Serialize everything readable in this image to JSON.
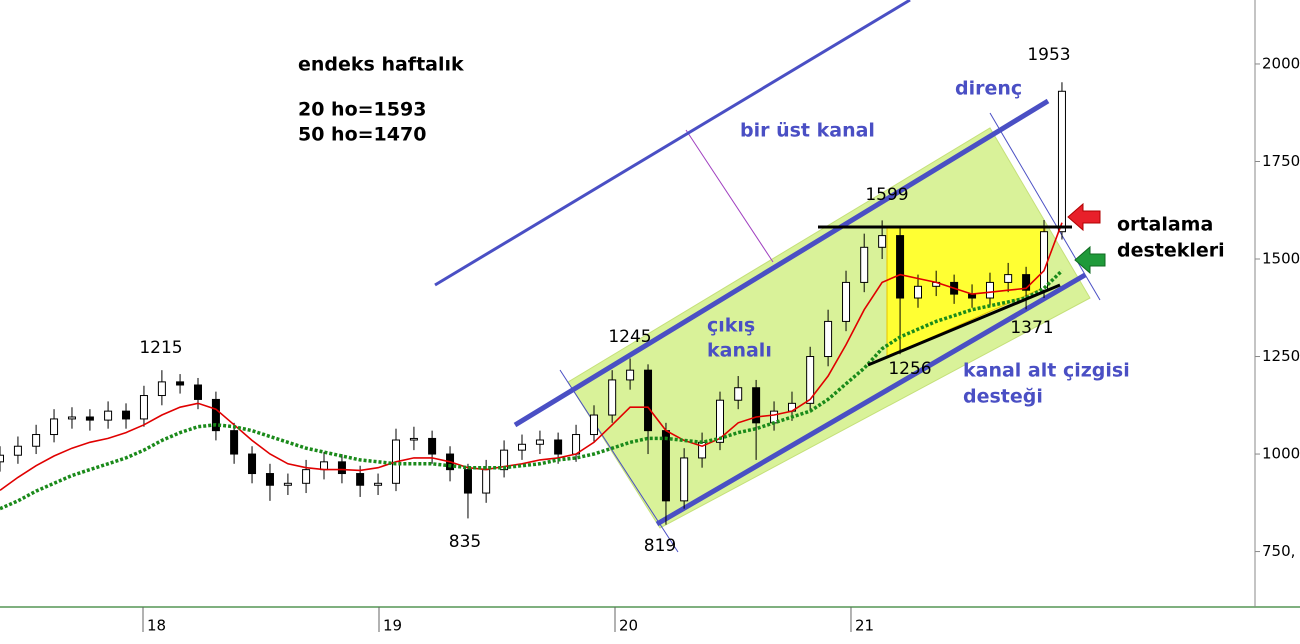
{
  "chart_data": {
    "type": "candlestick",
    "x": [
      17.394,
      17.47,
      17.547,
      17.623,
      17.699,
      17.775,
      17.852,
      17.928,
      18.004,
      18.08,
      18.157,
      18.233,
      18.309,
      18.386,
      18.462,
      18.538,
      18.614,
      18.691,
      18.767,
      18.843,
      18.92,
      18.996,
      19.072,
      19.148,
      19.225,
      19.301,
      19.377,
      19.454,
      19.53,
      19.606,
      19.682,
      19.759,
      19.835,
      19.911,
      19.988,
      20.064,
      20.14,
      20.216,
      20.293,
      20.369,
      20.445,
      20.522,
      20.598,
      20.674,
      20.75,
      20.827,
      20.903,
      20.979,
      21.056,
      21.132,
      21.208,
      21.284,
      21.361,
      21.437,
      21.513,
      21.589,
      21.666,
      21.742,
      21.818,
      21.894
    ],
    "open": [
      980,
      997,
      1020,
      1050,
      1090,
      1095,
      1087,
      1110,
      1090,
      1150,
      1185,
      1177,
      1140,
      1060,
      1000,
      950,
      920,
      925,
      960,
      980,
      950,
      920,
      925,
      1036,
      1040,
      1000,
      960,
      900,
      960,
      1010,
      1025,
      1036,
      1000,
      1050,
      1100,
      1190,
      1215,
      1060,
      880,
      990,
      1030,
      1138,
      1170,
      1080,
      1110,
      1130,
      1250,
      1340,
      1440,
      1530,
      1560,
      1400,
      1430,
      1440,
      1410,
      1400,
      1440,
      1460,
      1420,
      1570
    ],
    "high": [
      1020,
      1045,
      1075,
      1115,
      1120,
      1115,
      1135,
      1130,
      1175,
      1215,
      1205,
      1195,
      1160,
      1080,
      1020,
      975,
      950,
      985,
      1005,
      1000,
      970,
      950,
      1065,
      1070,
      1060,
      1020,
      975,
      985,
      1035,
      1050,
      1060,
      1055,
      1075,
      1125,
      1215,
      1245,
      1230,
      1080,
      1015,
      1055,
      1160,
      1200,
      1190,
      1135,
      1160,
      1275,
      1370,
      1470,
      1565,
      1599,
      1580,
      1460,
      1470,
      1460,
      1435,
      1465,
      1490,
      1480,
      1600,
      1953
    ],
    "low": [
      955,
      975,
      1000,
      1030,
      1065,
      1060,
      1065,
      1065,
      1070,
      1125,
      1155,
      1115,
      1035,
      975,
      925,
      880,
      895,
      900,
      935,
      925,
      890,
      895,
      905,
      1010,
      975,
      930,
      835,
      875,
      940,
      985,
      1000,
      975,
      980,
      1030,
      1080,
      1165,
      1000,
      819,
      860,
      965,
      1010,
      1115,
      985,
      1060,
      1085,
      1110,
      1225,
      1315,
      1415,
      1500,
      1256,
      1375,
      1405,
      1385,
      1375,
      1380,
      1415,
      1371,
      1400,
      1550
    ],
    "close": [
      997,
      1020,
      1050,
      1090,
      1095,
      1087,
      1110,
      1090,
      1150,
      1185,
      1177,
      1140,
      1060,
      1000,
      950,
      920,
      925,
      960,
      980,
      950,
      920,
      925,
      1036,
      1040,
      1000,
      960,
      900,
      960,
      1010,
      1025,
      1036,
      1000,
      1050,
      1100,
      1190,
      1215,
      1060,
      880,
      990,
      1030,
      1138,
      1170,
      1080,
      1110,
      1130,
      1250,
      1340,
      1440,
      1530,
      1560,
      1400,
      1430,
      1440,
      1410,
      1400,
      1440,
      1460,
      1420,
      1570,
      1930
    ],
    "up_color": "#ffffff",
    "down_color": "#000000",
    "moving_averages": [
      {
        "color": "#e00000",
        "style": "solid",
        "values": [
          907,
          940,
          970,
          995,
          1015,
          1030,
          1040,
          1055,
          1075,
          1100,
          1120,
          1130,
          1115,
          1075,
          1035,
          1000,
          975,
          965,
          960,
          960,
          958,
          965,
          980,
          990,
          990,
          980,
          965,
          960,
          968,
          975,
          985,
          990,
          1000,
          1030,
          1075,
          1120,
          1120,
          1060,
          1035,
          1020,
          1040,
          1080,
          1095,
          1100,
          1110,
          1140,
          1200,
          1280,
          1370,
          1440,
          1460,
          1450,
          1440,
          1425,
          1410,
          1415,
          1420,
          1425,
          1470,
          1593
        ]
      },
      {
        "color": "#1a8a1a",
        "style": "dotted",
        "values": [
          860,
          880,
          905,
          925,
          945,
          960,
          975,
          990,
          1010,
          1035,
          1055,
          1070,
          1075,
          1070,
          1060,
          1045,
          1030,
          1015,
          1005,
          995,
          985,
          980,
          975,
          975,
          975,
          970,
          965,
          965,
          965,
          970,
          975,
          985,
          990,
          1000,
          1015,
          1030,
          1040,
          1040,
          1035,
          1030,
          1040,
          1055,
          1065,
          1080,
          1095,
          1110,
          1140,
          1180,
          1220,
          1270,
          1300,
          1320,
          1340,
          1355,
          1370,
          1380,
          1390,
          1400,
          1425,
          1470
        ]
      }
    ],
    "xlim": [
      17.394,
      22.712
    ],
    "xticks": [
      18,
      19,
      20,
      21
    ],
    "ylim": [
      613,
      2164
    ],
    "yticks": [
      {
        "value": 750,
        "label": "750,"
      },
      1000,
      1250,
      1500,
      1750,
      2000
    ],
    "annotations": {
      "title": "endeks haftalık",
      "ma20": "20 ho=1593",
      "ma50": "50 ho=1470",
      "resistance": "direnç",
      "upper_channel": "bir üst kanal",
      "exit_channel": [
        "çıkış",
        "kanalı"
      ],
      "lower_support": [
        "kanal alt çizgisi",
        "desteği"
      ],
      "ma_support": [
        "ortalama",
        "destekleri"
      ]
    }
  }
}
